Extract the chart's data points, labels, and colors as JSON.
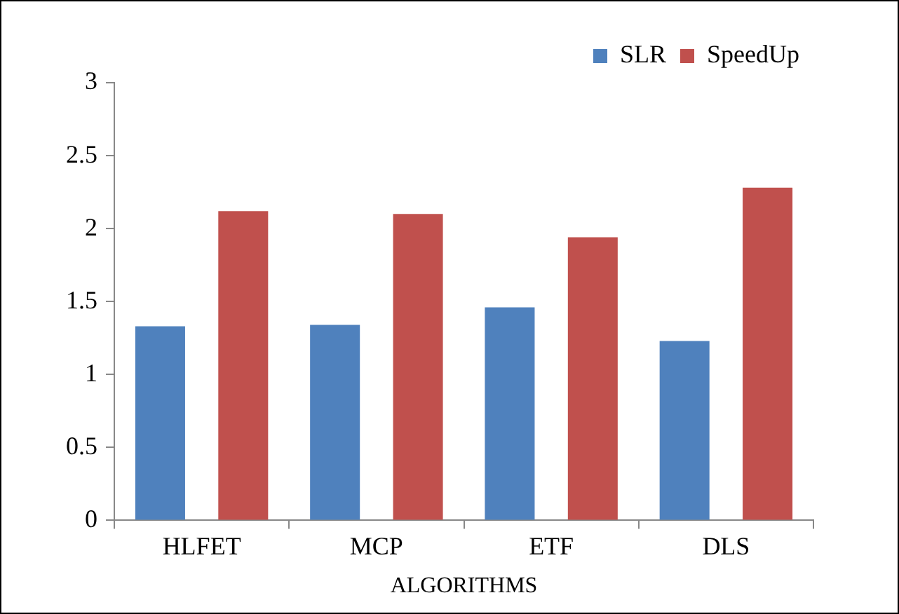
{
  "chart_data": {
    "type": "bar",
    "xlabel": "ALGORITHMS",
    "categories": [
      "HLFET",
      "MCP",
      "ETF",
      "DLS"
    ],
    "series": [
      {
        "name": "SLR",
        "color": "#4f81bd",
        "values": [
          1.33,
          1.34,
          1.46,
          1.23
        ]
      },
      {
        "name": "SpeedUp",
        "color": "#c0504d",
        "values": [
          2.12,
          2.1,
          1.94,
          2.28
        ]
      }
    ],
    "ylim": [
      0,
      3
    ],
    "yticks": [
      0,
      0.5,
      1,
      1.5,
      2,
      2.5,
      3
    ],
    "grid": false,
    "legend": "top right"
  }
}
